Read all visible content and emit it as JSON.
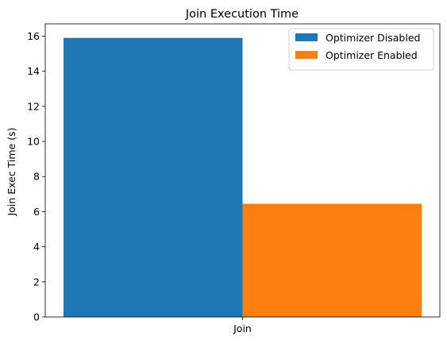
{
  "chart_data": {
    "type": "bar",
    "title": "Join Execution Time",
    "xlabel": "",
    "ylabel": "Join Exec Time (s)",
    "categories": [
      "Join"
    ],
    "series": [
      {
        "name": "Optimizer Disabled",
        "color": "#1f77b4",
        "values": [
          15.9
        ]
      },
      {
        "name": "Optimizer Enabled",
        "color": "#ff7f0e",
        "values": [
          6.45
        ]
      }
    ],
    "ylim": [
      0,
      16.7
    ],
    "yticks": [
      0,
      2,
      4,
      6,
      8,
      10,
      12,
      14,
      16
    ],
    "grid": false,
    "legend": "top-right"
  }
}
